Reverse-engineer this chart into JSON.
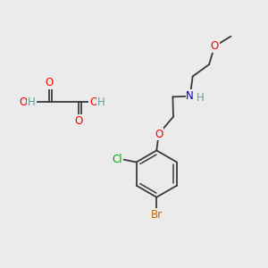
{
  "bg_color": "#ebebeb",
  "bond_color": "#3a3a3a",
  "atom_colors": {
    "O": "#ff0000",
    "N": "#0000cc",
    "Cl": "#00aa00",
    "Br": "#cc6600",
    "H": "#6a9a9a",
    "C": "#3a3a3a"
  },
  "font_size": 8.5,
  "lw": 1.3
}
